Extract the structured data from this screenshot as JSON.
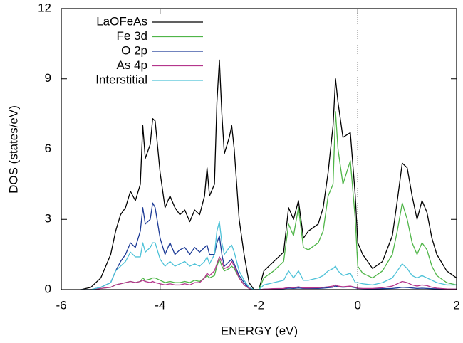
{
  "chart_data": {
    "type": "line",
    "xlabel": "ENERGY (eV)",
    "ylabel": "DOS (states/eV)",
    "xlim": [
      -6,
      2
    ],
    "ylim": [
      0,
      12
    ],
    "xticks": [
      -6,
      -4,
      -2,
      0,
      2
    ],
    "yticks": [
      0,
      3,
      6,
      9,
      12
    ],
    "vline": 0,
    "legend": "top-left",
    "x": [
      -5.6,
      -5.4,
      -5.2,
      -5.0,
      -4.9,
      -4.8,
      -4.7,
      -4.6,
      -4.5,
      -4.4,
      -4.35,
      -4.3,
      -4.2,
      -4.15,
      -4.1,
      -4.0,
      -3.9,
      -3.8,
      -3.7,
      -3.6,
      -3.5,
      -3.4,
      -3.3,
      -3.2,
      -3.1,
      -3.05,
      -3.0,
      -2.9,
      -2.85,
      -2.8,
      -2.75,
      -2.7,
      -2.6,
      -2.55,
      -2.5,
      -2.4,
      -2.3,
      -2.2,
      -2.1,
      -2.0,
      -1.9,
      -1.7,
      -1.5,
      -1.4,
      -1.3,
      -1.2,
      -1.1,
      -1.0,
      -0.8,
      -0.7,
      -0.6,
      -0.5,
      -0.45,
      -0.4,
      -0.3,
      -0.15,
      -0.05,
      0.0,
      0.1,
      0.3,
      0.5,
      0.7,
      0.8,
      0.9,
      1.0,
      1.1,
      1.2,
      1.3,
      1.4,
      1.5,
      1.6,
      1.8,
      2.0
    ],
    "series": [
      {
        "name": "LaOFeAs",
        "color": "#000000",
        "values": [
          0,
          0.1,
          0.5,
          1.5,
          2.5,
          3.2,
          3.5,
          4.2,
          3.8,
          4.5,
          7.0,
          5.6,
          6.2,
          7.3,
          7.2,
          5.0,
          3.5,
          4.0,
          3.5,
          3.2,
          3.4,
          2.9,
          3.4,
          3.2,
          4.0,
          5.2,
          4.0,
          4.5,
          8.0,
          9.8,
          7.5,
          5.8,
          6.5,
          7.0,
          6.0,
          3.0,
          1.5,
          0.3,
          0,
          0,
          0.8,
          1.2,
          1.6,
          3.5,
          3.0,
          3.8,
          2.2,
          2.5,
          2.8,
          3.5,
          5.0,
          7.0,
          9.0,
          8.0,
          6.5,
          6.7,
          4.0,
          2.0,
          1.5,
          0.9,
          1.2,
          2.3,
          3.8,
          5.4,
          5.2,
          4.0,
          3.0,
          3.8,
          3.3,
          2.2,
          1.5,
          0.8,
          0.5
        ]
      },
      {
        "name": "Fe 3d",
        "color": "#4fb548",
        "values": [
          0,
          0,
          0.05,
          0.1,
          0.2,
          0.25,
          0.3,
          0.35,
          0.3,
          0.35,
          0.5,
          0.4,
          0.45,
          0.5,
          0.5,
          0.4,
          0.3,
          0.35,
          0.3,
          0.3,
          0.35,
          0.3,
          0.4,
          0.35,
          0.5,
          0.6,
          0.5,
          0.6,
          1.0,
          1.3,
          1.0,
          0.8,
          0.9,
          1.0,
          0.9,
          0.5,
          0.2,
          0.05,
          0,
          0,
          0.5,
          0.8,
          1.2,
          2.8,
          2.3,
          3.5,
          1.8,
          1.7,
          2.0,
          2.5,
          4.0,
          4.5,
          7.6,
          6.0,
          4.5,
          5.5,
          3.0,
          1.0,
          0.7,
          0.5,
          0.8,
          1.5,
          2.5,
          3.7,
          3.0,
          2.0,
          1.5,
          2.0,
          1.7,
          1.0,
          0.6,
          0.3,
          0.2
        ]
      },
      {
        "name": "O 2p",
        "color": "#1c3a96",
        "values": [
          0,
          0,
          0.1,
          0.3,
          0.8,
          1.2,
          1.5,
          2.0,
          1.8,
          2.5,
          3.5,
          2.8,
          3.0,
          3.7,
          3.5,
          2.2,
          1.5,
          2.0,
          1.5,
          1.7,
          1.8,
          1.5,
          1.8,
          1.6,
          1.8,
          1.9,
          1.5,
          1.5,
          2.0,
          2.3,
          1.5,
          1.0,
          1.2,
          1.3,
          1.1,
          0.6,
          0.3,
          0.05,
          0,
          0,
          0.02,
          0.03,
          0.04,
          0.06,
          0.05,
          0.07,
          0.05,
          0.05,
          0.05,
          0.06,
          0.08,
          0.1,
          0.15,
          0.12,
          0.1,
          0.12,
          0.08,
          0.05,
          0.04,
          0.03,
          0.04,
          0.05,
          0.07,
          0.1,
          0.09,
          0.07,
          0.05,
          0.06,
          0.05,
          0.04,
          0.03,
          0.02,
          0.02
        ]
      },
      {
        "name": "As 4p",
        "color": "#b4358c",
        "values": [
          0,
          0,
          0.05,
          0.1,
          0.2,
          0.25,
          0.3,
          0.35,
          0.3,
          0.35,
          0.4,
          0.35,
          0.3,
          0.35,
          0.3,
          0.25,
          0.2,
          0.25,
          0.2,
          0.2,
          0.25,
          0.2,
          0.3,
          0.3,
          0.5,
          0.7,
          0.6,
          0.8,
          1.1,
          1.4,
          1.2,
          0.9,
          1.0,
          1.2,
          1.0,
          0.5,
          0.2,
          0.05,
          0,
          0,
          0.02,
          0.04,
          0.05,
          0.1,
          0.08,
          0.12,
          0.07,
          0.07,
          0.08,
          0.1,
          0.12,
          0.15,
          0.2,
          0.15,
          0.12,
          0.15,
          0.1,
          0.06,
          0.05,
          0.05,
          0.08,
          0.15,
          0.25,
          0.35,
          0.3,
          0.2,
          0.15,
          0.2,
          0.17,
          0.1,
          0.06,
          0.03,
          0.02
        ]
      },
      {
        "name": "Interstitial",
        "color": "#4ec2d8",
        "values": [
          0,
          0,
          0.1,
          0.3,
          0.8,
          1.0,
          1.2,
          1.6,
          1.4,
          1.4,
          2.0,
          1.6,
          1.8,
          2.0,
          2.0,
          1.3,
          1.0,
          1.2,
          1.0,
          1.1,
          1.2,
          1.0,
          1.1,
          1.0,
          1.2,
          1.4,
          1.1,
          1.5,
          2.5,
          2.9,
          2.0,
          1.5,
          1.8,
          1.9,
          1.6,
          0.8,
          0.4,
          0.1,
          0,
          0,
          0.2,
          0.3,
          0.4,
          0.8,
          0.5,
          0.8,
          0.4,
          0.4,
          0.5,
          0.6,
          0.8,
          0.9,
          1.0,
          0.8,
          0.6,
          0.7,
          0.3,
          0.3,
          0.25,
          0.2,
          0.3,
          0.5,
          0.8,
          1.1,
          0.9,
          0.6,
          0.5,
          0.6,
          0.5,
          0.4,
          0.3,
          0.2,
          0.2
        ]
      }
    ]
  }
}
